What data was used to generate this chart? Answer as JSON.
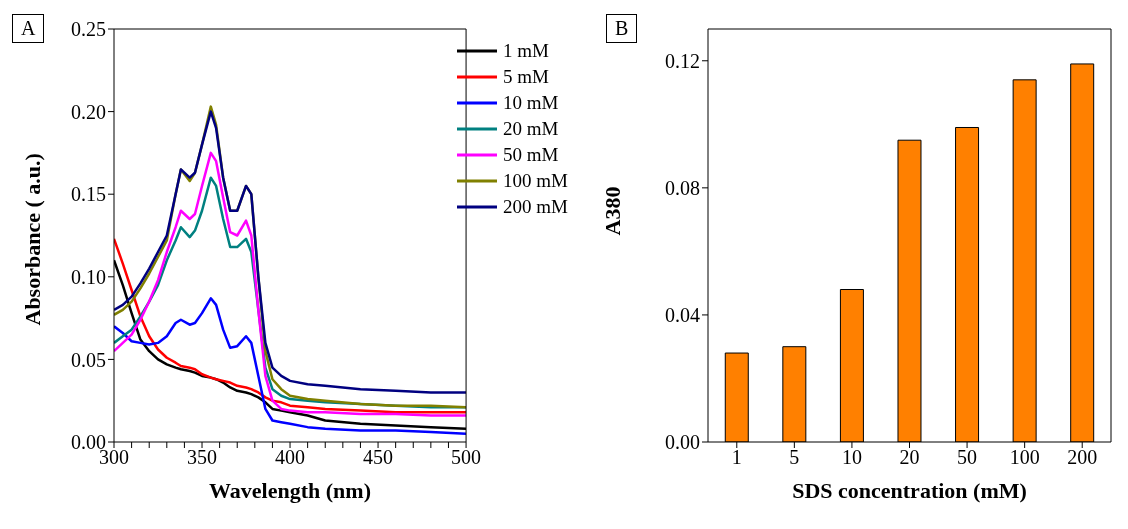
{
  "chart_data": [
    {
      "type": "line",
      "title": "A",
      "xlabel": "Wavelength (nm)",
      "ylabel": "Absorbance ( a.u.)",
      "x": [
        300,
        305,
        310,
        315,
        320,
        325,
        330,
        335,
        338,
        343,
        346,
        350,
        355,
        358,
        362,
        366,
        370,
        375,
        378,
        382,
        386,
        390,
        395,
        400,
        410,
        420,
        440,
        460,
        480,
        500
      ],
      "series": [
        {
          "name": "1 mM",
          "color": "#000000",
          "values": [
            0.11,
            0.095,
            0.078,
            0.062,
            0.055,
            0.05,
            0.047,
            0.045,
            0.044,
            0.043,
            0.042,
            0.04,
            0.039,
            0.038,
            0.036,
            0.033,
            0.031,
            0.03,
            0.029,
            0.027,
            0.024,
            0.02,
            0.019,
            0.018,
            0.016,
            0.013,
            0.011,
            0.01,
            0.009,
            0.008
          ]
        },
        {
          "name": "5 mM",
          "color": "#ff0000",
          "values": [
            0.123,
            0.108,
            0.092,
            0.076,
            0.064,
            0.056,
            0.051,
            0.048,
            0.046,
            0.045,
            0.044,
            0.041,
            0.039,
            0.038,
            0.037,
            0.036,
            0.034,
            0.033,
            0.032,
            0.03,
            0.027,
            0.025,
            0.024,
            0.022,
            0.021,
            0.02,
            0.019,
            0.018,
            0.018,
            0.018
          ]
        },
        {
          "name": "10 mM",
          "color": "#0000ff",
          "values": [
            0.07,
            0.066,
            0.061,
            0.06,
            0.059,
            0.06,
            0.064,
            0.072,
            0.074,
            0.071,
            0.072,
            0.078,
            0.087,
            0.083,
            0.068,
            0.057,
            0.058,
            0.064,
            0.06,
            0.04,
            0.02,
            0.013,
            0.012,
            0.011,
            0.009,
            0.008,
            0.007,
            0.007,
            0.006,
            0.005
          ]
        },
        {
          "name": "20 mM",
          "color": "#008080",
          "values": [
            0.06,
            0.064,
            0.068,
            0.076,
            0.085,
            0.095,
            0.11,
            0.122,
            0.13,
            0.124,
            0.128,
            0.14,
            0.16,
            0.155,
            0.135,
            0.118,
            0.118,
            0.123,
            0.115,
            0.08,
            0.045,
            0.032,
            0.028,
            0.026,
            0.025,
            0.024,
            0.023,
            0.022,
            0.021,
            0.021
          ]
        },
        {
          "name": "50 mM",
          "color": "#ff00ff",
          "values": [
            0.055,
            0.06,
            0.065,
            0.074,
            0.085,
            0.098,
            0.115,
            0.13,
            0.14,
            0.135,
            0.138,
            0.155,
            0.175,
            0.17,
            0.148,
            0.127,
            0.125,
            0.134,
            0.125,
            0.08,
            0.04,
            0.025,
            0.02,
            0.019,
            0.018,
            0.018,
            0.017,
            0.017,
            0.016,
            0.016
          ]
        },
        {
          "name": "100 mM",
          "color": "#808000",
          "values": [
            0.077,
            0.08,
            0.085,
            0.093,
            0.102,
            0.112,
            0.122,
            0.15,
            0.165,
            0.158,
            0.163,
            0.18,
            0.203,
            0.192,
            0.16,
            0.14,
            0.14,
            0.155,
            0.15,
            0.1,
            0.055,
            0.038,
            0.032,
            0.028,
            0.026,
            0.025,
            0.023,
            0.022,
            0.022,
            0.021
          ]
        },
        {
          "name": "200 mM",
          "color": "#000080",
          "values": [
            0.08,
            0.083,
            0.088,
            0.096,
            0.105,
            0.115,
            0.125,
            0.15,
            0.165,
            0.16,
            0.163,
            0.18,
            0.2,
            0.19,
            0.16,
            0.14,
            0.14,
            0.155,
            0.15,
            0.1,
            0.06,
            0.045,
            0.04,
            0.037,
            0.035,
            0.034,
            0.032,
            0.031,
            0.03,
            0.03
          ]
        }
      ],
      "xlim": [
        300,
        500
      ],
      "xticks": [
        300,
        {
          "value": 310,
          "label": null
        },
        {
          "value": 320,
          "label": null
        },
        {
          "value": 330,
          "label": null
        },
        {
          "value": 340,
          "label": null
        },
        350,
        {
          "value": 360,
          "label": null
        },
        {
          "value": 370,
          "label": null
        },
        {
          "value": 380,
          "label": null
        },
        {
          "value": 390,
          "label": null
        },
        400,
        {
          "value": 410,
          "label": null
        },
        {
          "value": 420,
          "label": null
        },
        {
          "value": 430,
          "label": null
        },
        {
          "value": 440,
          "label": null
        },
        450,
        {
          "value": 460,
          "label": null
        },
        {
          "value": 470,
          "label": null
        },
        {
          "value": 480,
          "label": null
        },
        {
          "value": 490,
          "label": null
        },
        500
      ],
      "ylim": [
        0,
        0.25
      ],
      "yticks": [
        {
          "value": 0,
          "label": "0.00"
        },
        {
          "value": 0.05,
          "label": "0.05"
        },
        {
          "value": 0.1,
          "label": "0.10"
        },
        {
          "value": 0.15,
          "label": "0.15"
        },
        {
          "value": 0.2,
          "label": "0.20"
        },
        {
          "value": 0.25,
          "label": "0.25"
        }
      ],
      "legend": "top right",
      "grid": false,
      "marker": "none",
      "line_style": "solid"
    },
    {
      "type": "bar",
      "title": "B",
      "xlabel": "SDS concentration (mM)",
      "ylabel": "A380",
      "categories": [
        "1",
        "5",
        "10",
        "20",
        "50",
        "100",
        "200"
      ],
      "values": [
        0.028,
        0.03,
        0.048,
        0.095,
        0.099,
        0.114,
        0.119
      ],
      "color": "#ff8000",
      "ylim": [
        0,
        0.13
      ],
      "yticks": [
        {
          "value": 0,
          "label": "0.00"
        },
        {
          "value": 0.04,
          "label": "0.04"
        },
        {
          "value": 0.08,
          "label": "0.08"
        },
        {
          "value": 0.12,
          "label": "0.12"
        }
      ],
      "grid": false
    }
  ]
}
